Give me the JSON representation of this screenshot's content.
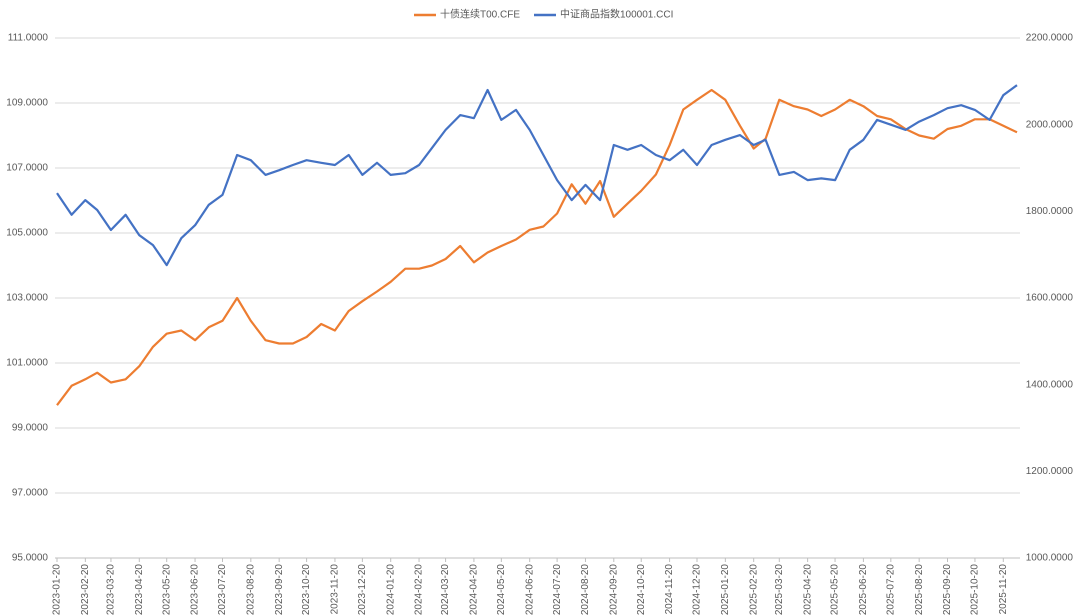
{
  "chart_data": {
    "type": "line",
    "x": [
      "2023-01-20",
      "2023-02-05",
      "2023-02-20",
      "2023-03-05",
      "2023-03-20",
      "2023-04-05",
      "2023-04-20",
      "2023-05-05",
      "2023-05-20",
      "2023-06-05",
      "2023-06-20",
      "2023-07-05",
      "2023-07-20",
      "2023-08-05",
      "2023-08-20",
      "2023-09-05",
      "2023-09-20",
      "2023-10-05",
      "2023-10-20",
      "2023-11-05",
      "2023-11-20",
      "2023-12-05",
      "2023-12-20",
      "2024-01-05",
      "2024-01-20",
      "2024-02-05",
      "2024-02-20",
      "2024-03-05",
      "2024-03-20",
      "2024-04-05",
      "2024-04-20",
      "2024-05-05",
      "2024-05-20",
      "2024-06-05",
      "2024-06-20",
      "2024-07-05",
      "2024-07-20",
      "2024-08-05",
      "2024-08-20",
      "2024-09-05",
      "2024-09-20",
      "2024-10-05",
      "2024-10-20",
      "2024-11-05",
      "2024-11-20",
      "2024-12-05",
      "2024-12-20",
      "2025-01-05",
      "2025-01-20",
      "2025-02-05",
      "2025-02-20",
      "2025-03-05",
      "2025-03-20",
      "2025-04-05",
      "2025-04-20",
      "2025-05-05",
      "2025-05-20",
      "2025-06-05",
      "2025-06-20",
      "2025-07-05",
      "2025-07-20",
      "2025-08-05",
      "2025-08-20",
      "2025-09-05",
      "2025-09-20",
      "2025-10-05",
      "2025-10-20",
      "2025-11-05",
      "2025-11-20",
      "2025-12-05"
    ],
    "series": [
      {
        "name": "十债连续T00.CFE",
        "color": "#ed7d31",
        "axis": "y",
        "values": [
          99.7,
          100.3,
          100.5,
          100.7,
          100.4,
          100.5,
          100.9,
          101.5,
          101.9,
          102.0,
          101.7,
          102.1,
          102.3,
          103.0,
          102.3,
          101.7,
          101.6,
          101.6,
          101.8,
          102.2,
          102.0,
          102.6,
          102.9,
          103.2,
          103.5,
          103.9,
          103.9,
          104.0,
          104.2,
          104.6,
          104.1,
          104.4,
          104.6,
          104.8,
          105.1,
          105.2,
          105.6,
          106.5,
          105.9,
          106.6,
          105.5,
          105.9,
          106.3,
          106.8,
          107.7,
          108.8,
          109.1,
          109.4,
          109.1,
          108.3,
          107.6,
          107.9,
          109.1,
          108.9,
          108.8,
          108.6,
          108.8,
          109.1,
          108.9,
          108.6,
          108.5,
          108.2,
          108.0,
          107.9,
          108.2,
          108.3,
          108.5,
          108.5,
          108.3,
          108.1
        ]
      },
      {
        "name": "中证商品指数100001.CCI",
        "color": "#4472c4",
        "axis": "y2",
        "values": [
          1842,
          1792,
          1826,
          1803,
          1757,
          1792,
          1745,
          1722,
          1676,
          1738,
          1768,
          1815,
          1838,
          1930,
          1918,
          1884,
          1895,
          1907,
          1918,
          1912,
          1907,
          1930,
          1884,
          1912,
          1884,
          1888,
          1907,
          1946,
          1988,
          2022,
          2015,
          2080,
          2011,
          2034,
          1988,
          1930,
          1872,
          1826,
          1861,
          1826,
          1953,
          1942,
          1953,
          1930,
          1918,
          1942,
          1907,
          1953,
          1965,
          1976,
          1953,
          1965,
          1884,
          1891,
          1872,
          1876,
          1872,
          1942,
          1965,
          2011,
          2000,
          1988,
          2007,
          2022,
          2038,
          2045,
          2034,
          2011,
          2068,
          2091
        ]
      }
    ],
    "xlim": [
      "2023-01-20",
      "2025-12-05"
    ],
    "xticks": [
      "2023-01-20",
      "2023-02-20",
      "2023-03-20",
      "2023-04-20",
      "2023-05-20",
      "2023-06-20",
      "2023-07-20",
      "2023-08-20",
      "2023-09-20",
      "2023-10-20",
      "2023-11-20",
      "2023-12-20",
      "2024-01-20",
      "2024-02-20",
      "2024-03-20",
      "2024-04-20",
      "2024-05-20",
      "2024-06-20",
      "2024-07-20",
      "2024-08-20",
      "2024-09-20",
      "2024-10-20",
      "2024-11-20",
      "2024-12-20",
      "2025-01-20",
      "2025-02-20",
      "2025-03-20",
      "2025-04-20",
      "2025-05-20",
      "2025-06-20",
      "2025-07-20",
      "2025-08-20",
      "2025-09-20",
      "2025-10-20",
      "2025-11-20"
    ],
    "ylim": [
      95,
      111
    ],
    "yticks": [
      {
        "value": 95,
        "label": "95.0000"
      },
      {
        "value": 97,
        "label": "97.0000"
      },
      {
        "value": 99,
        "label": "99.0000"
      },
      {
        "value": 101,
        "label": "101.0000"
      },
      {
        "value": 103,
        "label": "103.0000"
      },
      {
        "value": 105,
        "label": "105.0000"
      },
      {
        "value": 107,
        "label": "107.0000"
      },
      {
        "value": 109,
        "label": "109.0000"
      },
      {
        "value": 111,
        "label": "111.0000"
      }
    ],
    "y2lim": [
      1000,
      2200
    ],
    "y2ticks": [
      {
        "value": 1000,
        "label": "1000.0000"
      },
      {
        "value": 1200,
        "label": "1200.0000"
      },
      {
        "value": 1400,
        "label": "1400.0000"
      },
      {
        "value": 1600,
        "label": "1600.0000"
      },
      {
        "value": 1800,
        "label": "1800.0000"
      },
      {
        "value": 2000,
        "label": "2000.0000"
      },
      {
        "value": 2200,
        "label": "2200.0000"
      }
    ],
    "grid": true,
    "legend": "top"
  }
}
